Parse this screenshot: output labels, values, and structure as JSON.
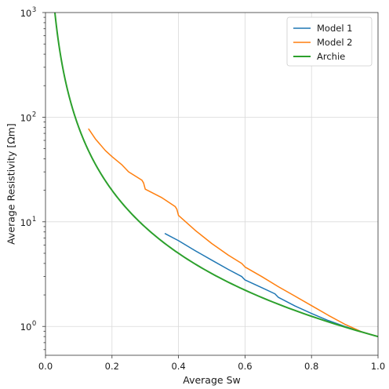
{
  "chart_data": {
    "type": "line",
    "xlabel": "Average Sw",
    "ylabel": "Average Resistivity [Ωm]",
    "xlim": [
      0.0,
      1.0
    ],
    "ylim": [
      0.53,
      1000
    ],
    "yscale": "log",
    "grid": true,
    "legend_position": "top-right",
    "xticks": [
      "0.0",
      "0.2",
      "0.4",
      "0.6",
      "0.8",
      "1.0"
    ],
    "xtick_values": [
      0.0,
      0.2,
      0.4,
      0.6,
      0.8,
      1.0
    ],
    "yticks": [
      {
        "value": 1,
        "base": "10",
        "exp": "0"
      },
      {
        "value": 10,
        "base": "10",
        "exp": "1"
      },
      {
        "value": 100,
        "base": "10",
        "exp": "2"
      },
      {
        "value": 1000,
        "base": "10",
        "exp": "3"
      }
    ],
    "series": [
      {
        "name": "Model 1",
        "color": "#1f77b4",
        "x": [
          0.36,
          0.4,
          0.45,
          0.5,
          0.55,
          0.59,
          0.6,
          0.65,
          0.69,
          0.7,
          0.75,
          0.8,
          0.85,
          0.9,
          0.95,
          1.0
        ],
        "y": [
          7.7,
          6.6,
          5.3,
          4.3,
          3.5,
          3.0,
          2.78,
          2.35,
          2.05,
          1.9,
          1.57,
          1.33,
          1.14,
          1.0,
          0.89,
          0.8
        ]
      },
      {
        "name": "Model 2",
        "color": "#ff7f0e",
        "x": [
          0.13,
          0.15,
          0.18,
          0.2,
          0.23,
          0.25,
          0.29,
          0.295,
          0.3,
          0.35,
          0.39,
          0.395,
          0.4,
          0.45,
          0.5,
          0.55,
          0.59,
          0.6,
          0.65,
          0.7,
          0.75,
          0.8,
          0.85,
          0.9,
          0.95,
          1.0
        ],
        "y": [
          77,
          62,
          48,
          42,
          35,
          30,
          25,
          23.5,
          20.5,
          17,
          14,
          13.2,
          11.5,
          8.3,
          6.2,
          4.8,
          4.0,
          3.7,
          3.0,
          2.4,
          1.95,
          1.58,
          1.28,
          1.05,
          0.89,
          0.8
        ]
      },
      {
        "name": "Archie",
        "color": "#2ca02c",
        "formula_coefficient": 0.8,
        "formula_exponent": -2,
        "x_range": [
          0.028,
          1.0
        ],
        "note_points": {
          "x": [
            0.03,
            0.05,
            0.1,
            0.2,
            0.4,
            0.6,
            0.8,
            1.0
          ],
          "y": [
            889,
            320,
            80,
            20,
            5,
            2.22,
            1.25,
            0.8
          ]
        }
      }
    ]
  }
}
